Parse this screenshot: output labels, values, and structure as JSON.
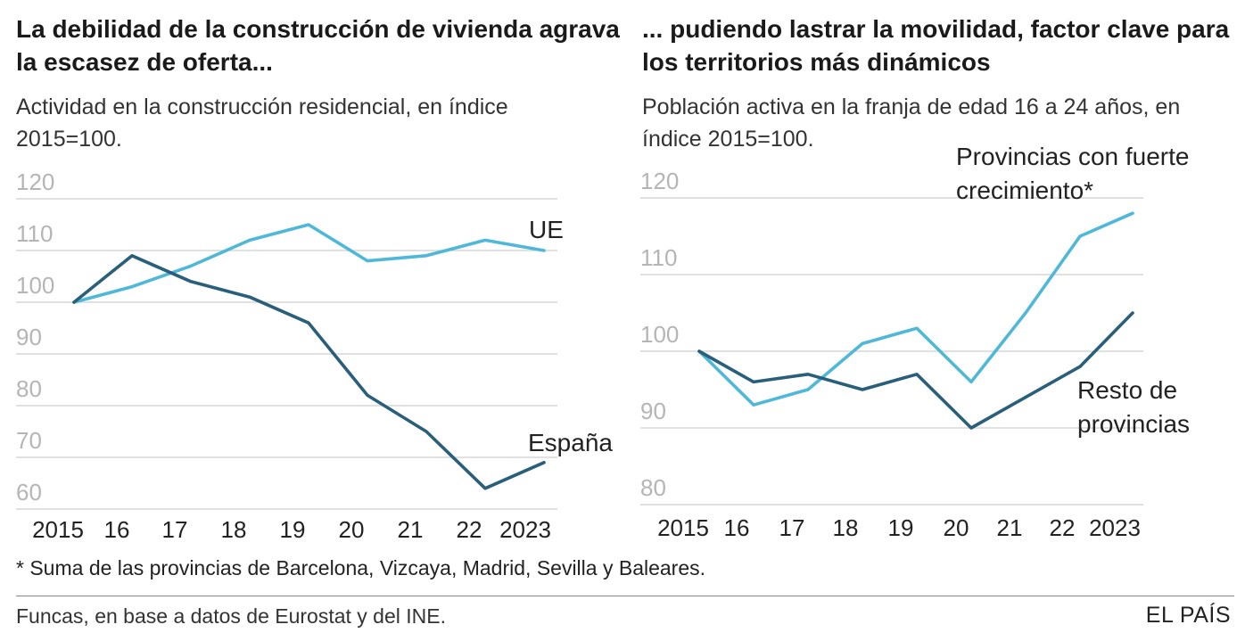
{
  "left": {
    "title": "La debilidad de la construcción de vivienda agrava la escasez de oferta...",
    "subtitle": "Actividad en la construcción residencial, en índice 2015=100."
  },
  "right": {
    "title": "... pudiendo lastrar la movilidad, factor clave para los territorios más dinámicos",
    "subtitle": "Población activa en la franja de edad 16 a 24 años, en índice 2015=100."
  },
  "footnote": "* Suma de las provincias de Barcelona, Vizcaya, Madrid, Sevilla y Baleares.",
  "source": "Funcas, en base a datos de Eurostat y del INE.",
  "brand": "EL PAÍS",
  "colors": {
    "light": "#4fb8d8",
    "dark": "#2a5f7c",
    "grid": "#cfcfcf"
  },
  "chart_data": [
    {
      "type": "line",
      "title": "La debilidad de la construcción de vivienda agrava la escasez de oferta...",
      "subtitle": "Actividad en la construcción residencial, en índice 2015=100.",
      "x": [
        2015,
        2016,
        2017,
        2018,
        2019,
        2020,
        2021,
        2022,
        2023
      ],
      "x_tick_labels": [
        "2015",
        "16",
        "17",
        "18",
        "19",
        "20",
        "21",
        "22",
        "2023"
      ],
      "y_ticks": [
        60,
        70,
        80,
        90,
        100,
        110,
        120
      ],
      "ylim": [
        60,
        120
      ],
      "grid": true,
      "series": [
        {
          "name": "UE",
          "color": "#4fb8d8",
          "values": [
            100,
            103,
            107,
            112,
            115,
            108,
            109,
            112,
            110
          ]
        },
        {
          "name": "España",
          "color": "#2a5f7c",
          "values": [
            100,
            109,
            104,
            101,
            96,
            82,
            75,
            64,
            69
          ]
        }
      ]
    },
    {
      "type": "line",
      "title": "... pudiendo lastrar la movilidad, factor clave para los territorios más dinámicos",
      "subtitle": "Población activa en la franja de edad 16 a 24 años, en índice 2015=100.",
      "x": [
        2015,
        2016,
        2017,
        2018,
        2019,
        2020,
        2021,
        2022,
        2023
      ],
      "x_tick_labels": [
        "2015",
        "16",
        "17",
        "18",
        "19",
        "20",
        "21",
        "22",
        "2023"
      ],
      "y_ticks": [
        80,
        90,
        100,
        110,
        120
      ],
      "ylim": [
        80,
        120
      ],
      "grid": true,
      "series": [
        {
          "name": "Provincias con fuerte crecimiento*",
          "color": "#4fb8d8",
          "values": [
            100,
            93,
            95,
            101,
            103,
            96,
            105,
            115,
            118
          ]
        },
        {
          "name": "Resto de provincias",
          "color": "#2a5f7c",
          "values": [
            100,
            96,
            97,
            95,
            97,
            90,
            94,
            98,
            105
          ]
        }
      ]
    }
  ]
}
